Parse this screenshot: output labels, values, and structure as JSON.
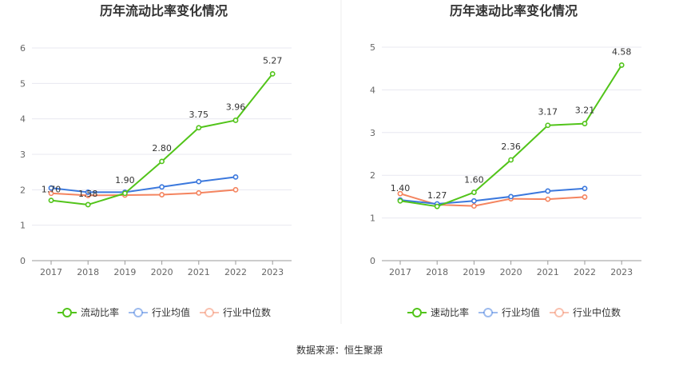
{
  "source": "数据来源：恒生聚源",
  "chart_data": [
    {
      "type": "line",
      "title": "历年流动比率变化情况",
      "categories": [
        "2017",
        "2018",
        "2019",
        "2020",
        "2021",
        "2022",
        "2023"
      ],
      "ylim": [
        0,
        6
      ],
      "yticks": [
        "0",
        "1",
        "2",
        "3",
        "4",
        "5",
        "6"
      ],
      "grid": true,
      "legend_position": "bottom",
      "series": [
        {
          "name": "流动比率",
          "color": "#52c41a",
          "values": [
            1.7,
            1.58,
            1.9,
            2.8,
            3.75,
            3.96,
            5.27
          ],
          "labels": [
            "1.70",
            "1.58",
            "1.90",
            "2.80",
            "3.75",
            "3.96",
            "5.27"
          ]
        },
        {
          "name": "行业均值",
          "color": "#3b78dd",
          "values": [
            2.05,
            1.93,
            1.93,
            2.08,
            2.23,
            2.36,
            null
          ]
        },
        {
          "name": "行业中位数",
          "color": "#f4845f",
          "values": [
            1.9,
            1.84,
            1.85,
            1.86,
            1.91,
            2.0,
            null
          ]
        }
      ]
    },
    {
      "type": "line",
      "title": "历年速动比率变化情况",
      "categories": [
        "2017",
        "2018",
        "2019",
        "2020",
        "2021",
        "2022",
        "2023"
      ],
      "ylim": [
        0,
        5
      ],
      "yticks": [
        "0",
        "1",
        "2",
        "3",
        "4",
        "5"
      ],
      "grid": true,
      "legend_position": "bottom",
      "series": [
        {
          "name": "速动比率",
          "color": "#52c41a",
          "values": [
            1.4,
            1.27,
            1.6,
            2.36,
            3.17,
            3.21,
            4.58
          ],
          "labels": [
            "1.40",
            "1.27",
            "1.60",
            "2.36",
            "3.17",
            "3.21",
            "4.58"
          ]
        },
        {
          "name": "行业均值",
          "color": "#3b78dd",
          "values": [
            1.42,
            1.33,
            1.4,
            1.5,
            1.63,
            1.69,
            null
          ]
        },
        {
          "name": "行业中位数",
          "color": "#f4845f",
          "values": [
            1.57,
            1.31,
            1.28,
            1.45,
            1.44,
            1.49,
            null
          ]
        }
      ]
    }
  ]
}
